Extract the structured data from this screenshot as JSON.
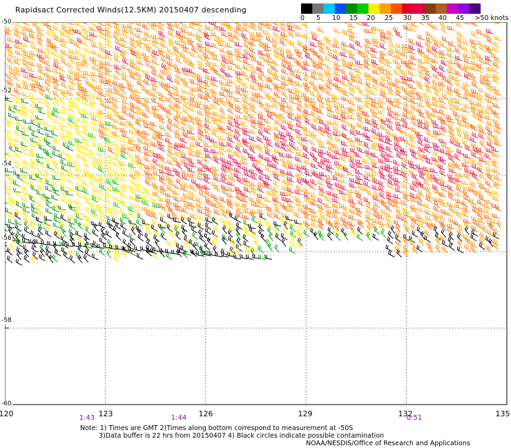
{
  "title": "Rapidsact Corrected Winds(12.5KM) 20150407 descending",
  "legend": {
    "labels": [
      "0",
      "5",
      "10",
      "15",
      "20",
      "25",
      "30",
      "35",
      "40",
      "45",
      ">50 knots"
    ],
    "colors": [
      "#000000",
      "#777777",
      "#00c8ff",
      "#0050ff",
      "#008c00",
      "#00cc00",
      "#fff200",
      "#ffa000",
      "#ff5000",
      "#e0002a",
      "#e0004a",
      "#803f10",
      "#b06020",
      "#c800c8",
      "#9000e0",
      "#500080"
    ]
  },
  "map": {
    "x_ticks": [
      "120",
      "123",
      "126",
      "129",
      "132",
      "135"
    ],
    "y_ticks": [
      "-50",
      "-52",
      "-54",
      "-56",
      "-58",
      "-60"
    ],
    "lon_range": [
      120,
      135
    ],
    "lat_range": [
      -60,
      -50
    ],
    "grid": true,
    "times": [
      {
        "label": "1:43",
        "lon": 122.6
      },
      {
        "label": "1:44",
        "lon": 125.2
      },
      {
        "label": "0:51",
        "lon": 132.2
      }
    ]
  },
  "notes": {
    "line1": "Note: 1) Times are GMT 2)Times along bottom correspond to measurement at -50S",
    "line2": "3)Data buffer is 22 hrs from 20150407 4) Black circles indicate possible contamination",
    "credit": "NOAA/NESDIS/Office of Research and Applications"
  }
}
